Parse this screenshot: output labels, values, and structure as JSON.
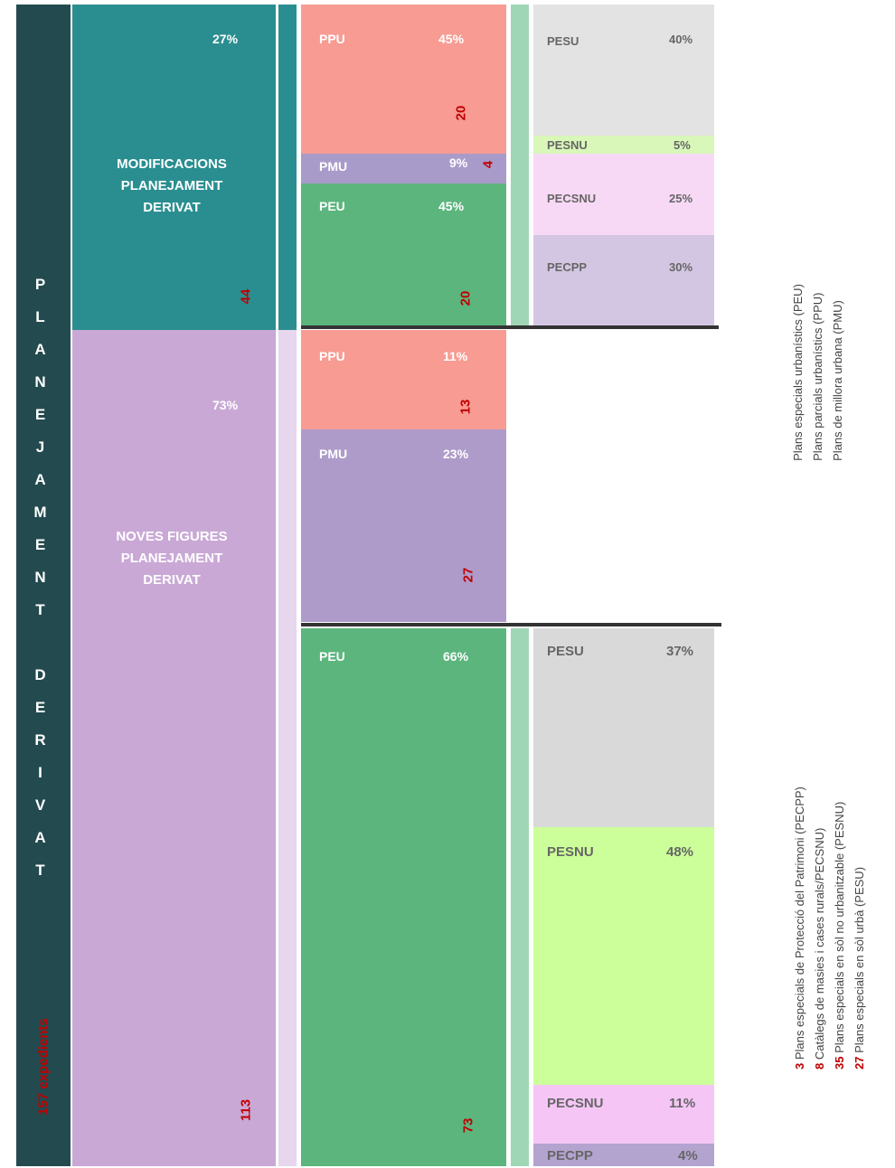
{
  "side_title": "PLANEJAMENT DERIVAT",
  "total": "157 expedients",
  "groups": [
    {
      "name": "MODIFICACIONS PLANEJAMENT DERIVAT",
      "share": "27%",
      "count": "44",
      "plans": [
        {
          "code": "PPU",
          "share": "45%",
          "count": "20"
        },
        {
          "code": "PMU",
          "share": "9%",
          "count": "4"
        },
        {
          "code": "PEU",
          "share": "45%",
          "count": "20"
        }
      ],
      "peu_types": [
        {
          "code": "PESU",
          "share": "40%"
        },
        {
          "code": "PESNU",
          "share": "5%"
        },
        {
          "code": "PECSNU",
          "share": "25%"
        },
        {
          "code": "PECPP",
          "share": "30%"
        }
      ]
    },
    {
      "name": "NOVES FIGURES PLANEJAMENT DERIVAT",
      "share": "73%",
      "count": "113",
      "plans": [
        {
          "code": "PPU",
          "share": "11%",
          "count": "13"
        },
        {
          "code": "PMU",
          "share": "23%",
          "count": "27"
        },
        {
          "code": "PEU",
          "share": "66%",
          "count": "73"
        }
      ],
      "peu_types": [
        {
          "code": "PESU",
          "share": "37%"
        },
        {
          "code": "PESNU",
          "share": "48%"
        },
        {
          "code": "PECSNU",
          "share": "11%"
        },
        {
          "code": "PECPP",
          "share": "4%"
        }
      ]
    }
  ],
  "legend_plans": [
    "Plans especials urbanístics (PEU)",
    "Plans parcials urbanístics (PPU)",
    "Plans de millora urbana (PMU)"
  ],
  "legend_peu": [
    {
      "count": "3",
      "text": "Plans especials de Protecció del Patrimoni (PECPP)"
    },
    {
      "count": "8",
      "text": "Catàlegs de masies i cases rurals/PECSNU)"
    },
    {
      "count": "35",
      "text": "Plans especials en sòl no urbanitzable (PESNU)"
    },
    {
      "count": "27",
      "text": "Plans especials en sòl urbà (PESU)"
    }
  ]
}
